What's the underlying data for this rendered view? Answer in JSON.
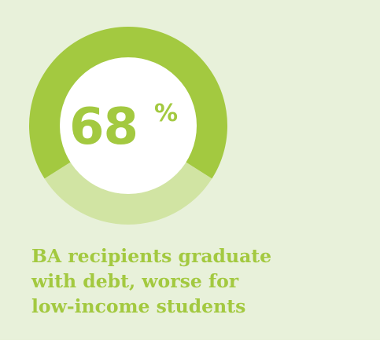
{
  "chart_data": {
    "type": "pie",
    "style": "donut",
    "title": "BA recipients graduate with debt, worse for low-income students",
    "values": [
      68,
      32
    ],
    "value_label": "68",
    "value_suffix": "%",
    "colors": [
      "#a3c940",
      "#d1e4a3"
    ]
  },
  "caption": {
    "lines": [
      "BA recipients graduate",
      "with debt, worse for",
      "low-income students"
    ]
  },
  "colors": {
    "background": "#e8f1da",
    "accent": "#a3c940",
    "accent_light": "#d1e4a3",
    "center": "#ffffff"
  }
}
